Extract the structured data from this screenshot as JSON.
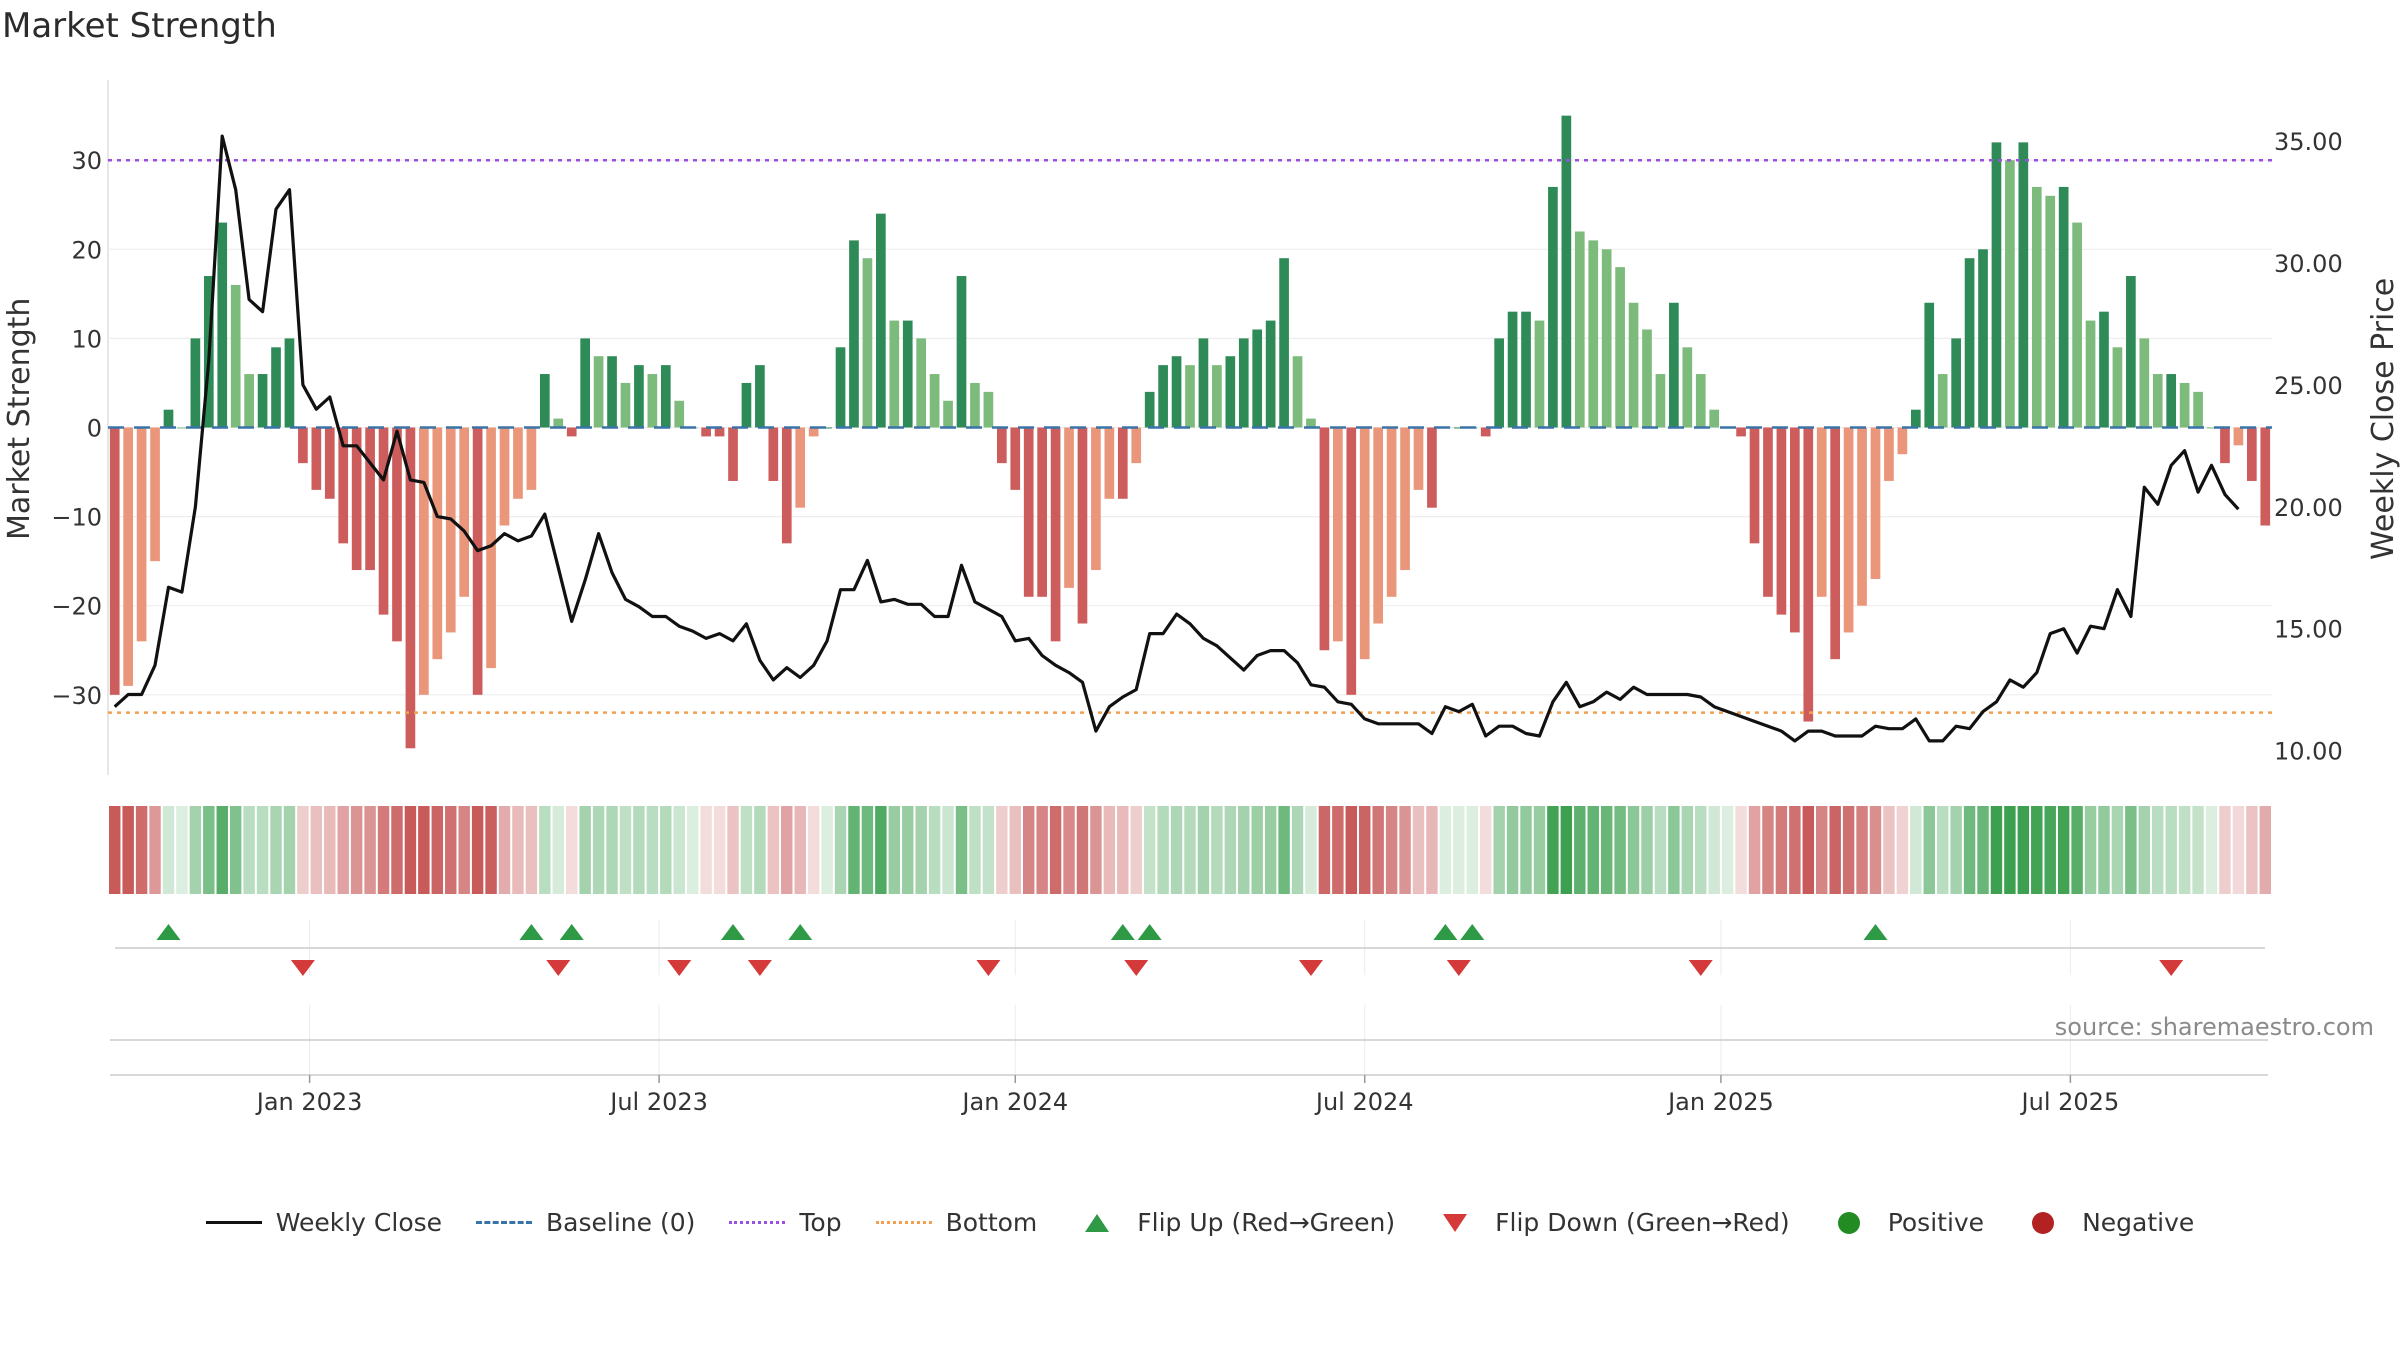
{
  "title": "Market Strength",
  "source": "source: sharemaestro.com",
  "colors": {
    "dark_green": "#2e8b57",
    "light_green": "#7dbb7d",
    "dark_red": "#cd5c5c",
    "light_red": "#e9967a",
    "baseline": "#3a73a8",
    "top": "#9b50e0",
    "bottom": "#f0a050",
    "close_line": "#111111",
    "flip_up": "#2e9a45",
    "flip_down": "#d43a3a",
    "positive": "#228b22",
    "negative": "#b22222"
  },
  "legend": [
    {
      "key": "line",
      "label": "Weekly Close"
    },
    {
      "key": "dash",
      "label": "Baseline (0)"
    },
    {
      "key": "dotp",
      "label": "Top"
    },
    {
      "key": "doto",
      "label": "Bottom"
    },
    {
      "key": "tri-up",
      "label": "Flip Up (Red→Green)"
    },
    {
      "key": "tri-down",
      "label": "Flip Down (Green→Red)"
    },
    {
      "key": "dot-pos",
      "label": "Positive"
    },
    {
      "key": "dot-neg",
      "label": "Negative"
    }
  ],
  "chart_data": {
    "type": "bar",
    "title": "Market Strength",
    "ylabel": "Market Strength",
    "y2label": "Weekly Close Price",
    "ylim": [
      -39,
      39
    ],
    "y2lim": [
      9.0,
      37.5
    ],
    "yticks": [
      30,
      20,
      10,
      0,
      -10,
      -20,
      -30
    ],
    "ytick_labels": [
      "30",
      "20",
      "10",
      "0",
      "−10",
      "−20",
      "−30"
    ],
    "y2ticks": [
      35,
      30,
      25,
      20,
      15,
      10
    ],
    "y2tick_labels": [
      "35.00",
      "30.00",
      "25.00",
      "20.00",
      "15.00",
      "10.00"
    ],
    "top_level": 30,
    "bottom_level": -32,
    "x_ticks": [
      "Jan 2023",
      "Jul 2023",
      "Jan 2024",
      "Jul 2024",
      "Jan 2025",
      "Jul 2025"
    ],
    "x_tick_weeks": [
      15,
      41,
      67.5,
      93.5,
      120,
      146
    ],
    "strength": [
      -30,
      -29,
      -24,
      -15,
      2,
      0,
      10,
      17,
      23,
      16,
      6,
      6,
      9,
      10,
      -4,
      -7,
      -8,
      -13,
      -16,
      -16,
      -21,
      -24,
      -36,
      -30,
      -26,
      -23,
      -19,
      -30,
      -27,
      -11,
      -8,
      -7,
      6,
      1,
      -1,
      10,
      8,
      8,
      5,
      7,
      6,
      7,
      3,
      0,
      -1,
      -1,
      -6,
      5,
      7,
      -6,
      -13,
      -9,
      -1,
      0,
      9,
      21,
      19,
      24,
      12,
      12,
      10,
      6,
      3,
      17,
      5,
      4,
      -4,
      -7,
      -19,
      -19,
      -24,
      -18,
      -22,
      -16,
      -8,
      -8,
      -4,
      4,
      7,
      8,
      7,
      10,
      7,
      8,
      10,
      11,
      12,
      19,
      8,
      1,
      -25,
      -24,
      -30,
      -26,
      -22,
      -19,
      -16,
      -7,
      -9,
      0,
      0,
      0,
      -1,
      10,
      13,
      13,
      12,
      27,
      35,
      22,
      21,
      20,
      18,
      14,
      11,
      6,
      14,
      9,
      6,
      2,
      0,
      -1,
      -13,
      -19,
      -21,
      -23,
      -33,
      -19,
      -26,
      -23,
      -20,
      -17,
      -6,
      -3,
      2,
      14,
      6,
      10,
      19,
      20,
      32,
      30,
      32,
      27,
      26,
      27,
      23,
      12,
      13,
      9,
      17,
      10,
      6,
      6,
      5,
      4,
      0,
      -4,
      -2,
      -6,
      -11
    ],
    "close": [
      11.8,
      12.3,
      12.3,
      13.5,
      16.7,
      16.5,
      20.0,
      26.0,
      35.2,
      33.0,
      28.5,
      28.0,
      32.2,
      33.0,
      25.0,
      24.0,
      24.5,
      22.5,
      22.5,
      21.8,
      21.1,
      23.1,
      21.1,
      21.0,
      19.6,
      19.5,
      19.0,
      18.2,
      18.4,
      18.9,
      18.6,
      18.8,
      19.7,
      17.5,
      15.3,
      17.0,
      18.9,
      17.3,
      16.2,
      15.9,
      15.5,
      15.5,
      15.1,
      14.9,
      14.6,
      14.8,
      14.5,
      15.2,
      13.7,
      12.9,
      13.4,
      13.0,
      13.5,
      14.5,
      16.6,
      16.6,
      17.8,
      16.1,
      16.2,
      16.0,
      16.0,
      15.5,
      15.5,
      17.6,
      16.1,
      15.8,
      15.5,
      14.5,
      14.6,
      13.9,
      13.5,
      13.2,
      12.8,
      10.8,
      11.8,
      12.2,
      12.5,
      14.8,
      14.8,
      15.6,
      15.2,
      14.6,
      14.3,
      13.8,
      13.3,
      13.9,
      14.1,
      14.1,
      13.6,
      12.7,
      12.6,
      12.0,
      11.9,
      11.3,
      11.1,
      11.1,
      11.1,
      11.1,
      10.7,
      11.8,
      11.6,
      11.9,
      10.6,
      11.0,
      11.0,
      10.7,
      10.6,
      12.0,
      12.8,
      11.8,
      12.0,
      12.4,
      12.1,
      12.6,
      12.3,
      12.3,
      12.3,
      12.3,
      12.2,
      11.8,
      11.6,
      11.4,
      11.2,
      11.0,
      10.8,
      10.4,
      10.8,
      10.8,
      10.6,
      10.6,
      10.6,
      11.0,
      10.9,
      10.9,
      11.3,
      10.4,
      10.4,
      11.0,
      10.9,
      11.6,
      12.0,
      12.9,
      12.6,
      13.2,
      14.8,
      15.0,
      14.0,
      15.1,
      15.0,
      16.6,
      15.5,
      20.8,
      20.1,
      21.7,
      22.3,
      20.6,
      21.7,
      20.5,
      19.9
    ]
  },
  "flip_up_weeks": [
    4.5,
    31.5,
    34.5,
    46.5,
    51.5,
    75.5,
    77.5,
    99.5,
    101.5,
    131.5
  ],
  "flip_down_weeks": [
    14.5,
    33.5,
    42.5,
    48.5,
    65.5,
    76.5,
    89.5,
    100.5,
    118.5,
    153.5
  ]
}
